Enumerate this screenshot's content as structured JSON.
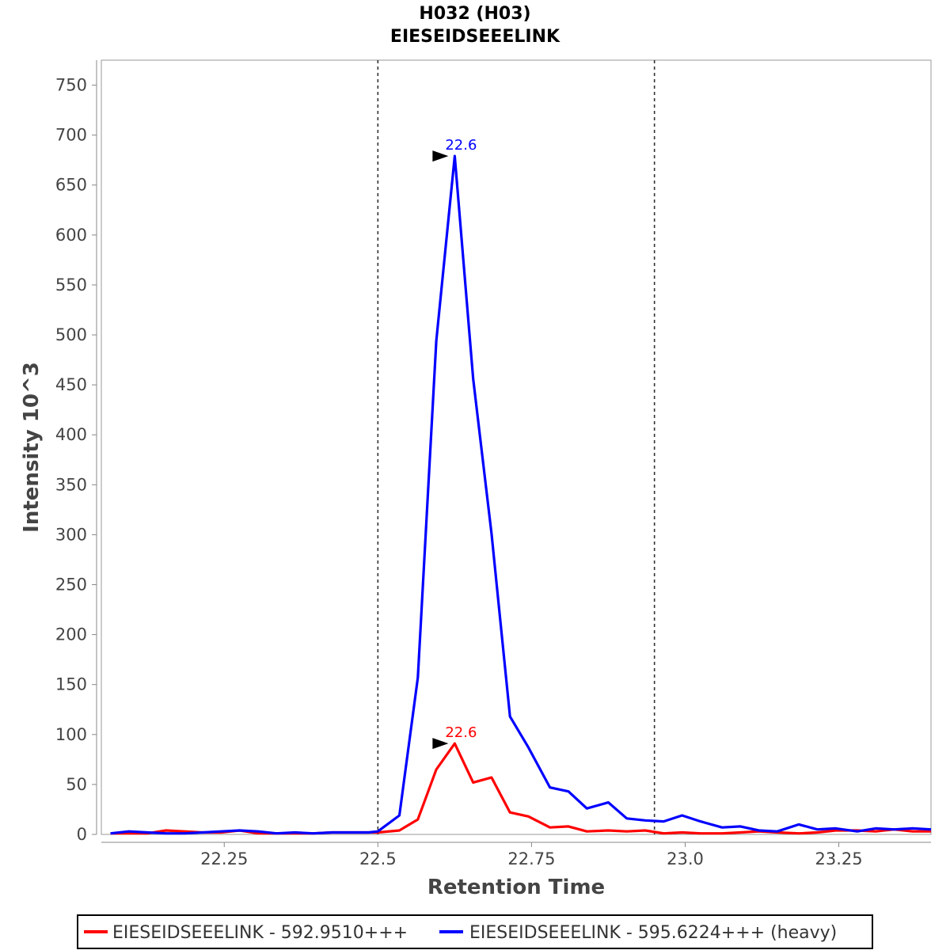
{
  "chart_data": {
    "type": "line",
    "title": "H032 (H03)",
    "subtitle": "EIESEIDSEEELINK",
    "xlabel": "Retention Time",
    "ylabel": "Intensity 10^3",
    "xlim": [
      22.05,
      23.4
    ],
    "ylim": [
      0,
      775
    ],
    "x_ticks": [
      22.25,
      22.5,
      22.75,
      23.0,
      23.25
    ],
    "x_tick_labels": [
      "22.25",
      "22.5",
      "22.75",
      "23.0",
      "23.25"
    ],
    "y_ticks": [
      0,
      50,
      100,
      150,
      200,
      250,
      300,
      350,
      400,
      450,
      500,
      550,
      600,
      650,
      700,
      750
    ],
    "y_tick_labels": [
      "0",
      "50",
      "100",
      "150",
      "200",
      "250",
      "300",
      "350",
      "400",
      "450",
      "500",
      "550",
      "600",
      "650",
      "700",
      "750"
    ],
    "boundaries": [
      22.5,
      22.95
    ],
    "x": [
      22.065,
      22.095,
      22.125,
      22.155,
      22.185,
      22.215,
      22.245,
      22.275,
      22.305,
      22.335,
      22.365,
      22.395,
      22.425,
      22.455,
      22.485,
      22.5,
      22.535,
      22.565,
      22.595,
      22.625,
      22.655,
      22.685,
      22.715,
      22.745,
      22.78,
      22.81,
      22.84,
      22.875,
      22.905,
      22.935,
      22.965,
      22.995,
      23.025,
      23.06,
      23.09,
      23.12,
      23.15,
      23.185,
      23.215,
      23.245,
      23.28,
      23.31,
      23.34,
      23.37,
      23.4
    ],
    "series": [
      {
        "name": "EIESEIDSEEELINK - 592.9510+++",
        "color": "#ff0000",
        "values": [
          1,
          1,
          1,
          4,
          3,
          2,
          2,
          4,
          1,
          1,
          1,
          1,
          2,
          2,
          2,
          2,
          4,
          15,
          65,
          91,
          52,
          57,
          22,
          18,
          7,
          8,
          3,
          4,
          3,
          4,
          1,
          2,
          1,
          1,
          2,
          3,
          2,
          1,
          2,
          4,
          4,
          3,
          5,
          3,
          3
        ],
        "peak": {
          "x": 22.625,
          "y": 91,
          "label": "22.6"
        }
      },
      {
        "name": "EIESEIDSEEELINK - 595.6224+++ (heavy)",
        "color": "#0000ff",
        "values": [
          1,
          3,
          2,
          1,
          1,
          2,
          3,
          4,
          3,
          1,
          2,
          1,
          2,
          2,
          2,
          3,
          19,
          157,
          494,
          679,
          456,
          301,
          118,
          87,
          47,
          43,
          26,
          32,
          16,
          14,
          13,
          19,
          13,
          7,
          8,
          4,
          3,
          10,
          5,
          6,
          3,
          6,
          5,
          6,
          5
        ],
        "peak": {
          "x": 22.625,
          "y": 679,
          "label": "22.6"
        }
      }
    ],
    "legend": "bottom",
    "grid": false
  }
}
